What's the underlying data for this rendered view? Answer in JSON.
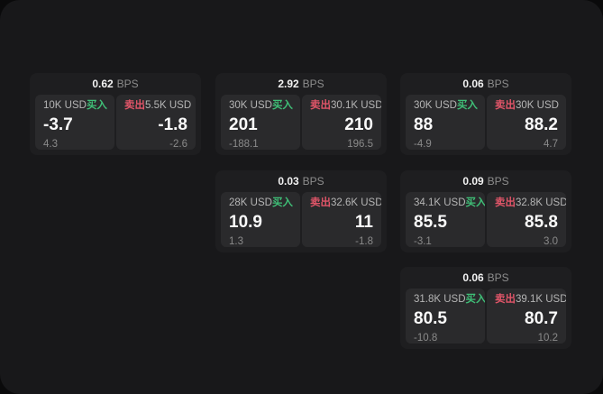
{
  "labels": {
    "bps_unit": "BPS",
    "buy": "买入",
    "sell": "卖出"
  },
  "colors": {
    "buy_green": "#3fbf77",
    "sell_red": "#e05568",
    "window_bg": "#18181a",
    "card_bg": "#1e1e20",
    "tile_bg": "#2a2a2c"
  },
  "cards": [
    {
      "bps": "0.62",
      "buy": {
        "amount": "10K USD",
        "price": "-3.7",
        "delta": "4.3"
      },
      "sell": {
        "amount": "5.5K USD",
        "price": "-1.8",
        "delta": "-2.6"
      }
    },
    {
      "bps": "2.92",
      "buy": {
        "amount": "30K USD",
        "price": "201",
        "delta": "-188.1"
      },
      "sell": {
        "amount": "30.1K USD",
        "price": "210",
        "delta": "196.5"
      }
    },
    {
      "bps": "0.06",
      "buy": {
        "amount": "30K USD",
        "price": "88",
        "delta": "-4.9"
      },
      "sell": {
        "amount": "30K USD",
        "price": "88.2",
        "delta": "4.7"
      }
    },
    {
      "bps": "0.03",
      "buy": {
        "amount": "28K USD",
        "price": "10.9",
        "delta": "1.3"
      },
      "sell": {
        "amount": "32.6K USD",
        "price": "11",
        "delta": "-1.8"
      }
    },
    {
      "bps": "0.09",
      "buy": {
        "amount": "34.1K USD",
        "price": "85.5",
        "delta": "-3.1"
      },
      "sell": {
        "amount": "32.8K USD",
        "price": "85.8",
        "delta": "3.0"
      }
    },
    {
      "bps": "0.06",
      "buy": {
        "amount": "31.8K USD",
        "price": "80.5",
        "delta": "-10.8"
      },
      "sell": {
        "amount": "39.1K USD",
        "price": "80.7",
        "delta": "10.2"
      }
    }
  ]
}
